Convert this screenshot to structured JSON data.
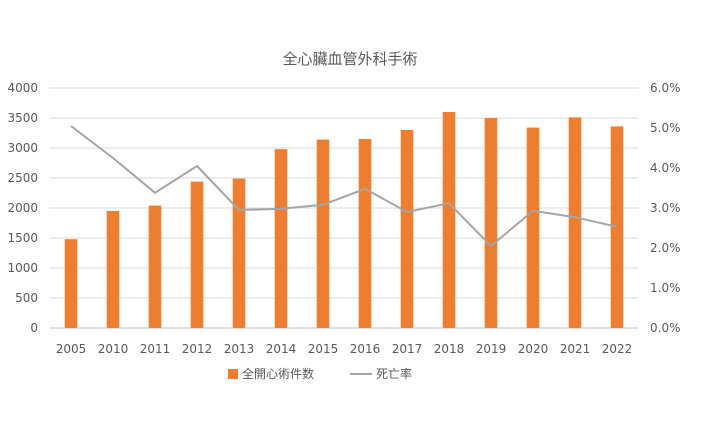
{
  "chart_data": {
    "type": "bar",
    "title": "全心臟血管外科手術",
    "categories": [
      "2005",
      "2010",
      "2011",
      "2012",
      "2013",
      "2014",
      "2015",
      "2016",
      "2017",
      "2018",
      "2019",
      "2020",
      "2021",
      "2022"
    ],
    "series": [
      {
        "name": "全開心術件数",
        "type": "bar",
        "axis": "left",
        "color": "#ED7D31",
        "values": [
          1480,
          1950,
          2040,
          2440,
          2490,
          2980,
          3140,
          3150,
          3300,
          3600,
          3500,
          3340,
          3510,
          3360
        ]
      },
      {
        "name": "死亡率",
        "type": "line",
        "axis": "right",
        "color": "#A5A5A5",
        "values": [
          5.05,
          4.25,
          3.38,
          4.05,
          2.95,
          2.98,
          3.08,
          3.48,
          2.9,
          3.12,
          2.05,
          2.93,
          2.77,
          2.53
        ]
      }
    ],
    "y_left": {
      "min": 0,
      "max": 4000,
      "step": 500
    },
    "y_right": {
      "min": 0,
      "max": 6,
      "step": 1,
      "format": "percent1"
    },
    "grid": true,
    "legend_position": "bottom"
  }
}
